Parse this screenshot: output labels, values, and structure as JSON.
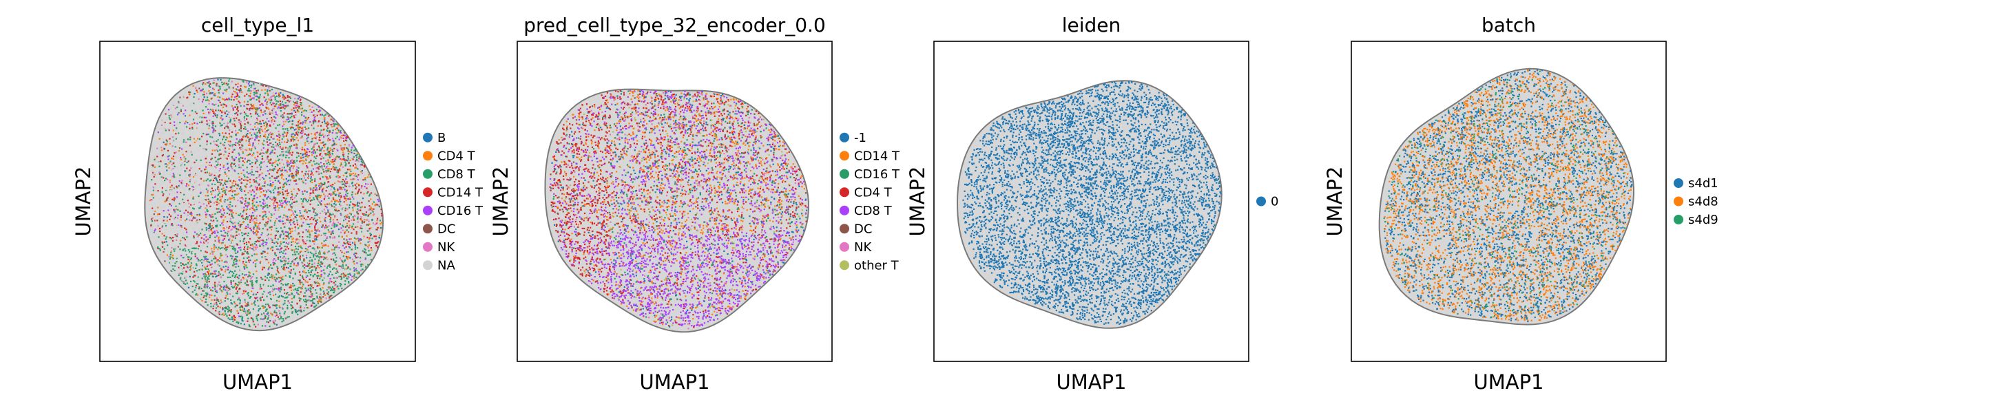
{
  "chart_data": [
    {
      "type": "scatter",
      "title": "cell_type_l1",
      "xlabel": "UMAP1",
      "ylabel": "UMAP2",
      "grid": false,
      "legend_position": "right",
      "categories": [
        "B",
        "CD4 T",
        "CD8 T",
        "CD14 T",
        "CD16 T",
        "DC",
        "NK",
        "NA"
      ],
      "colors": [
        "#1f77b4",
        "#ff7f0e",
        "#279e68",
        "#d62728",
        "#aa40fc",
        "#8c564b",
        "#e377c2",
        "#d3d3d3"
      ],
      "weights": [
        0.05,
        0.15,
        0.25,
        0.2,
        0.08,
        0.03,
        0.1,
        0.14
      ]
    },
    {
      "type": "scatter",
      "title": "pred_cell_type_32_encoder_0.0",
      "xlabel": "UMAP1",
      "ylabel": "UMAP2",
      "grid": false,
      "legend_position": "right",
      "categories": [
        "-1",
        "CD14 T",
        "CD16 T",
        "CD4 T",
        "CD8 T",
        "DC",
        "NK",
        "other T"
      ],
      "colors": [
        "#1f77b4",
        "#ff7f0e",
        "#279e68",
        "#d62728",
        "#aa40fc",
        "#8c564b",
        "#e377c2",
        "#b5bd61"
      ],
      "weights": [
        0.1,
        0.22,
        0.08,
        0.2,
        0.25,
        0.05,
        0.05,
        0.05
      ]
    },
    {
      "type": "scatter",
      "title": "leiden",
      "xlabel": "UMAP1",
      "ylabel": "UMAP2",
      "grid": false,
      "legend_position": "right",
      "categories": [
        "0"
      ],
      "colors": [
        "#1f77b4"
      ],
      "weights": [
        1
      ]
    },
    {
      "type": "scatter",
      "title": "batch",
      "xlabel": "UMAP1",
      "ylabel": "UMAP2",
      "grid": false,
      "legend_position": "right",
      "categories": [
        "s4d1",
        "s4d8",
        "s4d9"
      ],
      "colors": [
        "#1f77b4",
        "#ff7f0e",
        "#279e68"
      ],
      "weights": [
        0.45,
        0.45,
        0.1
      ]
    }
  ]
}
